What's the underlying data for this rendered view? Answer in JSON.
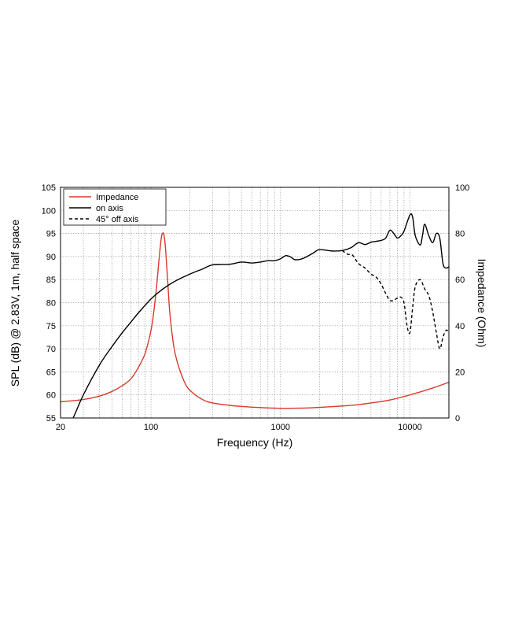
{
  "chart_data": {
    "type": "line",
    "title": "",
    "xlabel": "Frequency (Hz)",
    "ylabel": "SPL (dB) @ 2.83V, 1m, half space",
    "y2label": "Impedance (Ohm)",
    "xscale": "log",
    "xlim": [
      20,
      20000
    ],
    "ylim": [
      55,
      105
    ],
    "y2lim": [
      0,
      100
    ],
    "grid": true,
    "legend_position": "top-left",
    "x_ticks": [
      {
        "value": 20,
        "label": "20"
      },
      {
        "value": 100,
        "label": "100"
      },
      {
        "value": 1000,
        "label": "1000"
      },
      {
        "value": 10000,
        "label": "10000"
      }
    ],
    "y_ticks": [
      {
        "value": 55,
        "label": "55"
      },
      {
        "value": 60,
        "label": "60"
      },
      {
        "value": 65,
        "label": "65"
      },
      {
        "value": 70,
        "label": "70"
      },
      {
        "value": 75,
        "label": "75"
      },
      {
        "value": 80,
        "label": "80"
      },
      {
        "value": 85,
        "label": "85"
      },
      {
        "value": 90,
        "label": "90"
      },
      {
        "value": 95,
        "label": "95"
      },
      {
        "value": 100,
        "label": "100"
      },
      {
        "value": 105,
        "label": "105"
      }
    ],
    "y2_ticks": [
      {
        "value": 0,
        "label": "0"
      },
      {
        "value": 20,
        "label": "20"
      },
      {
        "value": 40,
        "label": "40"
      },
      {
        "value": 60,
        "label": "60"
      },
      {
        "value": 80,
        "label": "80"
      },
      {
        "value": 100,
        "label": "100"
      }
    ],
    "series": [
      {
        "name": "Impedance",
        "axis": "right",
        "color": "#d93a2b",
        "dash": "solid",
        "x": [
          20,
          30,
          40,
          50,
          60,
          70,
          80,
          90,
          100,
          105,
          110,
          115,
          120,
          123,
          125,
          127,
          130,
          135,
          140,
          150,
          160,
          180,
          200,
          250,
          300,
          400,
          500,
          700,
          1000,
          1500,
          2000,
          3000,
          4000,
          5000,
          7000,
          10000,
          15000,
          20000
        ],
        "y": [
          7,
          8,
          9.5,
          11.5,
          14,
          17,
          22,
          28,
          38,
          46,
          56,
          68,
          78,
          80,
          80,
          78,
          72,
          58,
          45,
          31,
          24,
          16,
          12,
          8,
          6.5,
          5.5,
          5,
          4.5,
          4.2,
          4.3,
          4.6,
          5.2,
          5.8,
          6.5,
          7.8,
          10,
          13,
          15.5
        ]
      },
      {
        "name": "on axis",
        "axis": "left",
        "color": "#000000",
        "dash": "solid",
        "x": [
          20,
          25,
          30,
          40,
          50,
          60,
          70,
          80,
          100,
          120,
          150,
          200,
          250,
          300,
          400,
          500,
          600,
          700,
          800,
          900,
          1000,
          1100,
          1200,
          1300,
          1500,
          1800,
          2000,
          2500,
          3000,
          3500,
          4000,
          4500,
          5000,
          5500,
          6000,
          6500,
          7000,
          7500,
          8000,
          8500,
          9000,
          10000,
          10500,
          11000,
          12000,
          12500,
          13000,
          14000,
          15000,
          16000,
          17000,
          18000,
          19000,
          20000
        ],
        "y": [
          50,
          55,
          60,
          66.5,
          70.5,
          73.5,
          75.8,
          77.8,
          80.8,
          82.7,
          84.5,
          86.2,
          87.3,
          88.2,
          88.3,
          88.8,
          88.6,
          88.8,
          89.1,
          89.1,
          89.5,
          90.2,
          89.9,
          89.3,
          89.6,
          90.8,
          91.5,
          91.2,
          91.3,
          91.9,
          93,
          92.6,
          93.1,
          93.3,
          93.5,
          94,
          95.7,
          95,
          94,
          94.5,
          95.5,
          99,
          98.5,
          94.5,
          92.5,
          94.5,
          97,
          94.5,
          93,
          95,
          94,
          88.5,
          87.5,
          87.8
        ]
      },
      {
        "name": "45° off axis",
        "axis": "left",
        "color": "#000000",
        "dash": "dashed",
        "x": [
          3000,
          3300,
          3600,
          4000,
          4500,
          5000,
          5500,
          6000,
          6500,
          7000,
          7500,
          8000,
          8500,
          9000,
          9500,
          10000,
          10500,
          11000,
          12000,
          13000,
          14000,
          15000,
          16000,
          17000,
          18000,
          19000,
          20000
        ],
        "y": [
          91.3,
          90.5,
          90.3,
          88.5,
          87.5,
          86.2,
          85.5,
          84,
          82,
          80.5,
          80.5,
          81,
          81.2,
          80,
          75,
          73.5,
          79,
          83.5,
          85,
          83,
          81.5,
          78,
          73.5,
          70,
          72.5,
          74,
          73.7
        ]
      }
    ]
  }
}
